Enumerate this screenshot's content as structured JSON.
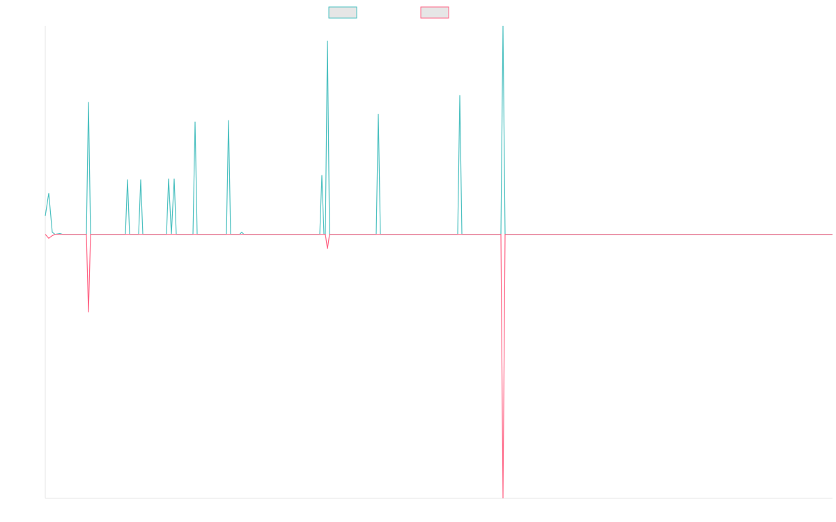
{
  "chart_data": {
    "type": "line",
    "x": [
      0,
      5,
      10,
      14,
      21,
      25,
      59,
      62,
      65,
      115,
      118,
      121,
      134,
      137,
      140,
      174,
      177,
      181,
      185,
      188,
      212,
      215,
      218,
      260,
      263,
      266,
      279,
      282,
      285,
      394,
      397,
      400,
      402,
      405,
      408,
      475,
      478,
      481,
      592,
      595,
      598,
      654,
      657,
      660,
      1130
    ],
    "series": [
      {
        "color": "#4bc0c0",
        "values": [
          7,
          15.6,
          0.8,
          0,
          0.3,
          0,
          0,
          50.1,
          0,
          0,
          20.8,
          0,
          0,
          20.8,
          0,
          0,
          21.1,
          0,
          21.1,
          0,
          0,
          42.7,
          0,
          0,
          43.2,
          0,
          0,
          0.8,
          0,
          0,
          22.4,
          0,
          0,
          73.3,
          0,
          0,
          45.6,
          0,
          0,
          52.7,
          0,
          0,
          79,
          0,
          0
        ]
      },
      {
        "color": "#ff6384",
        "values": [
          0,
          -1.5,
          -0.5,
          0,
          0,
          0,
          0,
          -29.5,
          0,
          0,
          0,
          0,
          0,
          0,
          0,
          0,
          0,
          0,
          0,
          0,
          0,
          0,
          0,
          0,
          0,
          0,
          0,
          0,
          0,
          0,
          0,
          0,
          0,
          -5.5,
          0,
          0,
          0,
          0,
          0,
          0,
          0,
          0,
          -100,
          0,
          0
        ]
      }
    ],
    "xlim": [
      0,
      1130
    ],
    "ylim": [
      -100,
      79
    ]
  }
}
